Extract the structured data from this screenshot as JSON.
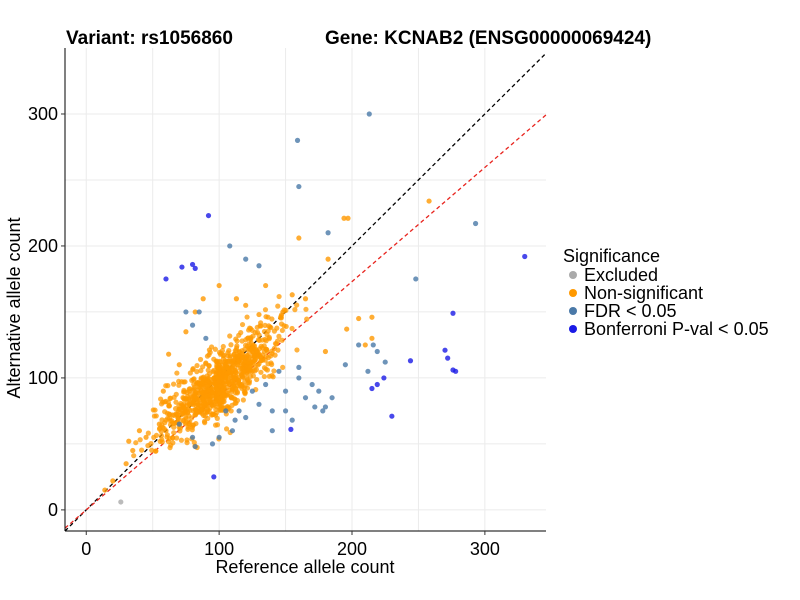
{
  "chart_data": {
    "type": "scatter",
    "title_left": "Variant: rs1056860",
    "title_right": "Gene: KCNAB2 (ENSG00000069424)",
    "xlabel": "Reference allele count",
    "ylabel": "Alternative allele count",
    "xlim": [
      -16,
      346
    ],
    "ylim": [
      -16,
      350
    ],
    "xticks": [
      0,
      100,
      200,
      300
    ],
    "yticks": [
      0,
      100,
      200,
      300
    ],
    "grid": true,
    "legend": {
      "title": "Significance",
      "position": "right",
      "entries": [
        {
          "label": "Excluded",
          "color": "#aaaaaa"
        },
        {
          "label": "Non-significant",
          "color": "#ff9900"
        },
        {
          "label": "FDR < 0.05",
          "color": "#4a79a8"
        },
        {
          "label": "Bonferroni P-val < 0.05",
          "color": "#1a1ae6"
        }
      ]
    },
    "reference_lines": [
      {
        "name": "y = x",
        "slope": 1,
        "intercept": 0,
        "color": "#000000",
        "style": "dashed"
      },
      {
        "name": "fit",
        "slope": 0.865,
        "intercept": 0,
        "color": "#e8241e",
        "style": "dashed"
      }
    ],
    "non_significant_cloud": {
      "description_points_generated": "dense orange cloud roughly along y = x",
      "x_center": 100,
      "y_center": 95,
      "n": 900
    },
    "series": [
      {
        "name": "Excluded",
        "color": "#aaaaaa",
        "points": [
          [
            26,
            6
          ]
        ]
      },
      {
        "name": "Non-significant",
        "color": "#ff9900",
        "points": [
          [
            14,
            15
          ],
          [
            20,
            22
          ],
          [
            30,
            35
          ],
          [
            35,
            45
          ],
          [
            40,
            60
          ],
          [
            32,
            52
          ],
          [
            45,
            55
          ],
          [
            55,
            65
          ],
          [
            258,
            234
          ],
          [
            194,
            221
          ],
          [
            197,
            221
          ],
          [
            160,
            206
          ],
          [
            182,
            190
          ],
          [
            135,
            170
          ],
          [
            155,
            163
          ],
          [
            165,
            160
          ],
          [
            148,
            150
          ],
          [
            215,
            130
          ],
          [
            210,
            125
          ],
          [
            205,
            145
          ],
          [
            215,
            146
          ],
          [
            196,
            137
          ],
          [
            180,
            120
          ],
          [
            60,
            60
          ],
          [
            62,
            118
          ],
          [
            75,
            135
          ],
          [
            82,
            150
          ],
          [
            88,
            160
          ],
          [
            100,
            170
          ],
          [
            113,
            160
          ],
          [
            120,
            155
          ],
          [
            130,
            148
          ],
          [
            70,
            110
          ],
          [
            58,
            90
          ]
        ]
      },
      {
        "name": "FDR < 0.05",
        "color": "#4a79a8",
        "points": [
          [
            213,
            300
          ],
          [
            159,
            280
          ],
          [
            160,
            245
          ],
          [
            293,
            217
          ],
          [
            182,
            210
          ],
          [
            108,
            200
          ],
          [
            120,
            190
          ],
          [
            130,
            185
          ],
          [
            248,
            175
          ],
          [
            80,
            140
          ],
          [
            85,
            150
          ],
          [
            75,
            150
          ],
          [
            90,
            130
          ],
          [
            216,
            125
          ],
          [
            219,
            120
          ],
          [
            205,
            125
          ],
          [
            225,
            112
          ],
          [
            212,
            105
          ],
          [
            195,
            110
          ],
          [
            170,
            95
          ],
          [
            160,
            100
          ],
          [
            165,
            85
          ],
          [
            150,
            90
          ],
          [
            140,
            75
          ],
          [
            130,
            80
          ],
          [
            120,
            70
          ],
          [
            115,
            75
          ],
          [
            110,
            60
          ],
          [
            100,
            55
          ],
          [
            95,
            50
          ],
          [
            82,
            48
          ],
          [
            140,
            60
          ],
          [
            150,
            75
          ],
          [
            155,
            68
          ],
          [
            172,
            78
          ],
          [
            185,
            85
          ],
          [
            180,
            78
          ],
          [
            175,
            90
          ],
          [
            160,
            108
          ],
          [
            145,
            105
          ],
          [
            125,
            90
          ],
          [
            105,
            75
          ],
          [
            112,
            68
          ],
          [
            135,
            95
          ],
          [
            178,
            75
          ],
          [
            70,
            65
          ],
          [
            80,
            55
          ]
        ]
      },
      {
        "name": "Bonferroni P-val < 0.05",
        "color": "#1a1ae6",
        "points": [
          [
            92,
            223
          ],
          [
            330,
            192
          ],
          [
            60,
            175
          ],
          [
            72,
            184
          ],
          [
            82,
            183
          ],
          [
            80,
            186
          ],
          [
            276,
            149
          ],
          [
            270,
            121
          ],
          [
            272,
            115
          ],
          [
            244,
            113
          ],
          [
            224,
            100
          ],
          [
            215,
            92
          ],
          [
            219,
            95
          ],
          [
            276,
            106
          ],
          [
            278,
            105
          ],
          [
            230,
            71
          ],
          [
            154,
            61
          ],
          [
            96,
            25
          ]
        ]
      }
    ]
  }
}
